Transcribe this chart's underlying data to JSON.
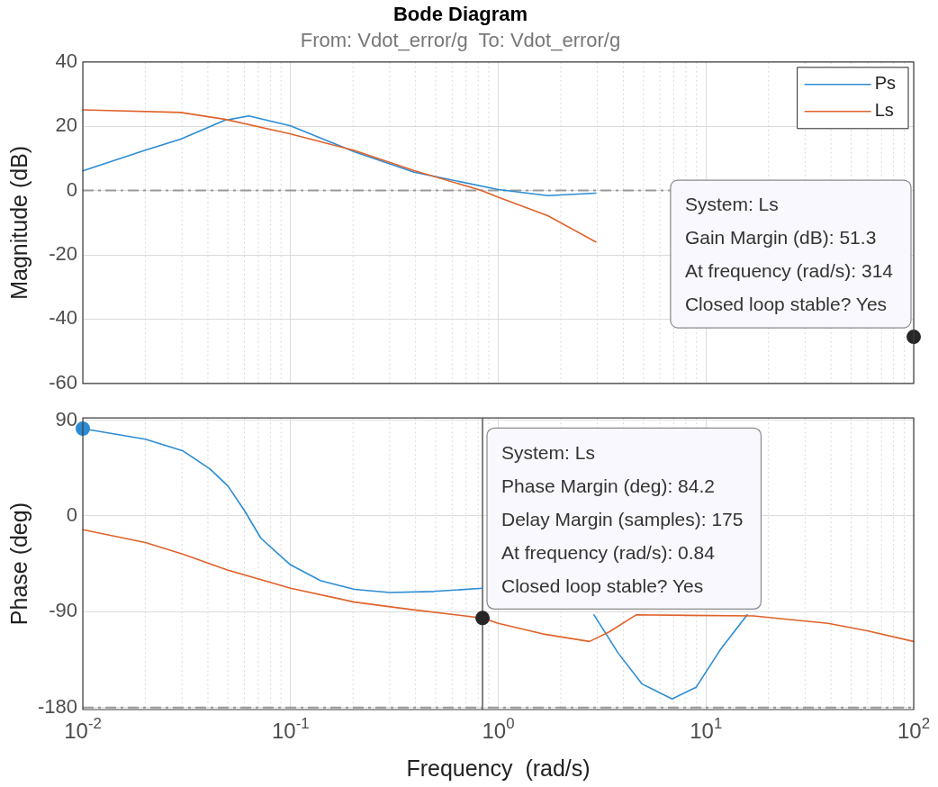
{
  "chart_data": [
    {
      "type": "line",
      "title": "Bode Diagram",
      "subtitle": "From: Vdot_error/g  To: Vdot_error/g",
      "ylabel": "Magnitude (dB)",
      "log": "x",
      "grid": true,
      "legend": "top right",
      "tick_labels": "y",
      "marker": "none",
      "xlim": [
        0.01,
        100
      ],
      "xticks": [
        {
          "value": 0.01,
          "label": null
        },
        {
          "value": 0.1,
          "label": null
        },
        {
          "value": 1,
          "label": null
        },
        {
          "value": 10,
          "label": null
        },
        {
          "value": 100,
          "label": null
        }
      ],
      "ylim": [
        -60,
        40
      ],
      "yticks": [
        -60,
        -40,
        -20,
        0,
        20,
        40
      ],
      "series": [
        {
          "name": "Ps",
          "color": "#2b8cd4",
          "x": [
            0.01,
            0.0197,
            0.0296,
            0.048,
            0.063,
            0.1,
            0.204,
            0.394,
            1.0,
            1.73,
            2.95
          ],
          "values": [
            6.1,
            12.4,
            16.0,
            21.8,
            23.2,
            20.1,
            12.0,
            5.7,
            0.3,
            -1.6,
            -0.8
          ]
        },
        {
          "name": "Ls",
          "color": "#e0622a",
          "x": [
            0.01,
            0.0296,
            0.048,
            0.1,
            0.204,
            0.394,
            0.83,
            1.0,
            1.73,
            2.95
          ],
          "values": [
            25.1,
            24.3,
            22.2,
            17.6,
            12.4,
            6.2,
            0,
            -2.1,
            -7.8,
            -16.0
          ]
        },
        {
          "type": "scatter",
          "marker": "circle",
          "color": "#262626",
          "x": [
            100
          ],
          "values": [
            -45.5
          ]
        }
      ],
      "ref_lines": [
        {
          "axis": "y",
          "value": 0,
          "color": "#999999",
          "line_style": "dashed"
        }
      ],
      "annotations": [
        {
          "text": "System: Ls\nGain Margin (dB): 51.3\nAt frequency (rad/s): 314\nClosed loop stable? Yes",
          "x": 100,
          "y": -45.5
        }
      ]
    },
    {
      "type": "line",
      "xlabel": "Frequency  (rad/s)",
      "ylabel": "Phase (deg)",
      "log": "x",
      "grid": true,
      "marker": "none",
      "xlim": [
        0.01,
        100
      ],
      "xticks": [
        {
          "value": 0.01,
          "label": "10$^{-2}$"
        },
        {
          "value": 0.1,
          "label": "10$^{-1}$"
        },
        {
          "value": 1,
          "label": "10$^{0}$"
        },
        {
          "value": 10,
          "label": "10$^{1}$"
        },
        {
          "value": 100,
          "label": "10$^{2}$"
        }
      ],
      "ylim": [
        -182,
        92
      ],
      "yticks": [
        -180,
        -90,
        0,
        90
      ],
      "series": [
        {
          "color": "#2b8cd4",
          "x": [
            0.01,
            0.02,
            0.0304,
            0.041,
            0.05,
            0.06,
            0.072,
            0.1,
            0.14,
            0.203,
            0.3,
            0.49,
            0.84,
            1.5,
            2.89,
            3.78,
            4.93,
            6.87,
            8.97,
            11.7,
            15.8
          ],
          "values": [
            82,
            72,
            61,
            44,
            28,
            5,
            -21,
            -46,
            -61,
            -69,
            -72,
            -71,
            -68,
            null,
            -93,
            -129,
            -158,
            -172,
            -161,
            -126,
            -93
          ]
        },
        {
          "color": "#e0622a",
          "x": [
            0.01,
            0.02,
            0.0304,
            0.05,
            0.1,
            0.203,
            0.38,
            0.84,
            1.0,
            1.645,
            2.75,
            3.42,
            4.61,
            16.9,
            38.7,
            59.7,
            100
          ],
          "values": [
            -13,
            -25,
            -36,
            -51,
            -68,
            -81,
            -88,
            -96,
            -101,
            -111,
            -118,
            -109,
            -93,
            -94,
            -101,
            -108,
            -118
          ]
        },
        {
          "type": "scatter",
          "marker": "circle",
          "color": "#2b8cd4",
          "x": [
            0.01
          ],
          "values": [
            82
          ]
        },
        {
          "type": "scatter",
          "marker": "circle",
          "color": "#262626",
          "x": [
            0.84
          ],
          "values": [
            -96
          ]
        }
      ],
      "ref_lines": [
        {
          "axis": "y",
          "value": -180,
          "color": "#999999",
          "line_style": "dashed"
        },
        {
          "axis": "x",
          "value": 0.84,
          "color": "#808080",
          "line_style": "solid"
        }
      ],
      "annotations": [
        {
          "text": "System: Ls\nPhase Margin (deg): 84.2\nDelay Margin (samples): 175\nAt frequency (rad/s): 0.84\nClosed loop stable? Yes",
          "x": 0.84,
          "y": -96
        }
      ]
    }
  ]
}
